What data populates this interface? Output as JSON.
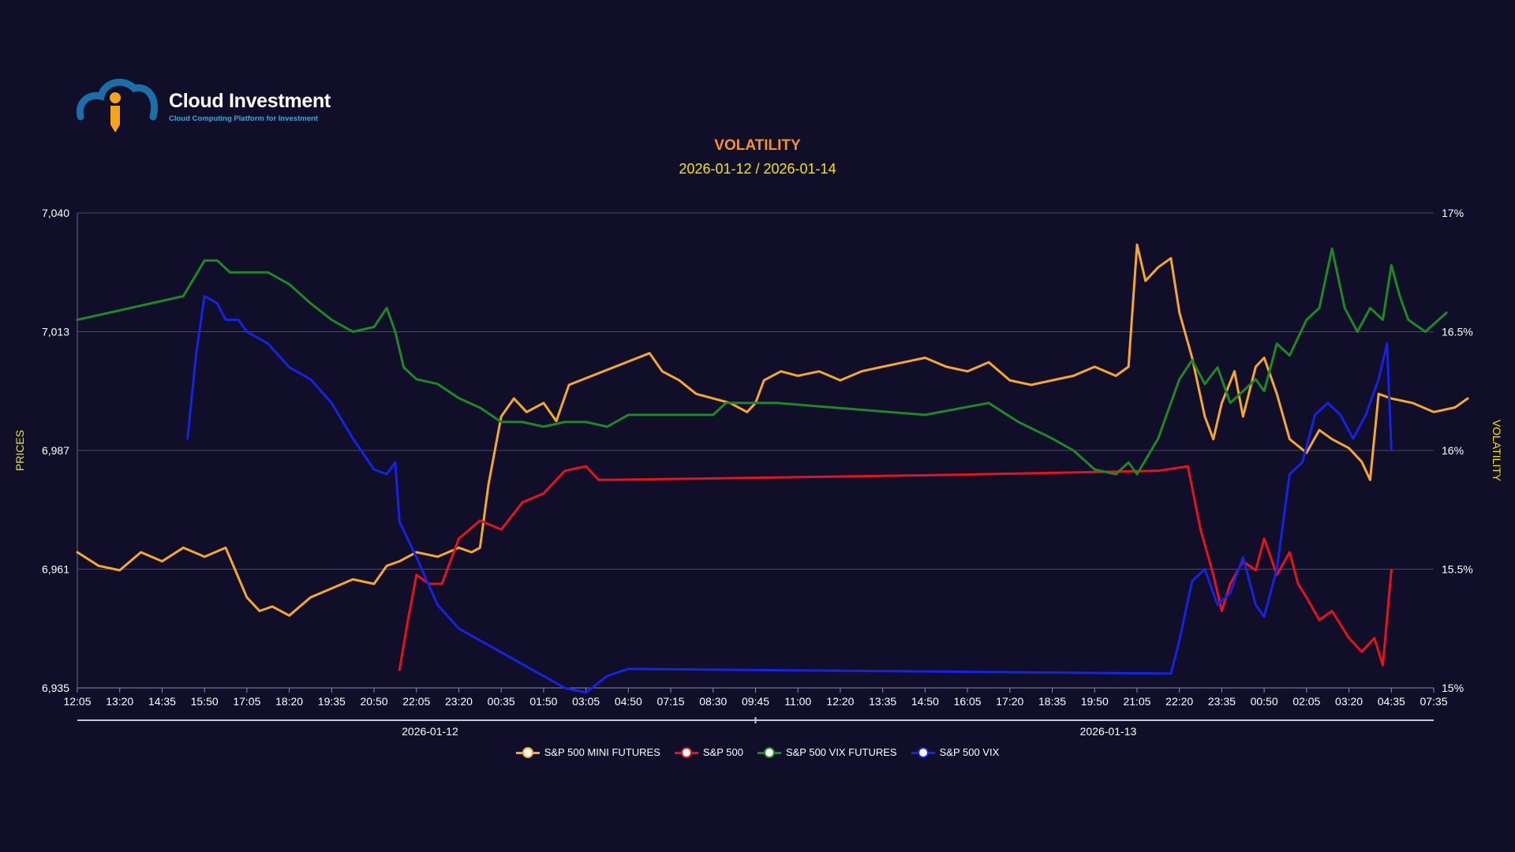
{
  "brand": {
    "name": "Cloud Investment",
    "tagline": "Cloud Computing Platform for Investment",
    "colors": {
      "cloud": "#1a6fa8",
      "figure": "#f7a41d",
      "tagline": "#3aa7d9"
    }
  },
  "chart_data": {
    "type": "line",
    "title": "VOLATILITY",
    "subtitle": "2026-01-12 / 2026-01-14",
    "ylabel_left": "PRICES",
    "ylabel_right": "VOLATILITY",
    "y_left_ticks": [
      "7,040",
      "7,013",
      "6,987",
      "6,961",
      "6,935"
    ],
    "y_right_ticks": [
      "17%",
      "16.5%",
      "16%",
      "15.5%",
      "15%"
    ],
    "ylim_left": [
      6935,
      7040
    ],
    "ylim_right": [
      15,
      17
    ],
    "x_ticks": [
      "12:05",
      "13:20",
      "14:35",
      "15:50",
      "17:05",
      "18:20",
      "19:35",
      "20:50",
      "22:05",
      "23:20",
      "00:35",
      "01:50",
      "03:05",
      "04:50",
      "07:15",
      "08:30",
      "09:45",
      "11:00",
      "12:20",
      "13:35",
      "14:50",
      "16:05",
      "17:20",
      "18:35",
      "19:50",
      "21:05",
      "22:20",
      "23:35",
      "00:50",
      "02:05",
      "03:20",
      "04:35",
      "07:35"
    ],
    "navigator_labels": [
      "2026-01-12",
      "2026-01-13"
    ],
    "grid": true,
    "legend_position": "bottom-center",
    "series": [
      {
        "name": "S&P 500 MINI FUTURES",
        "axis": "left",
        "color": "#f7a72a",
        "points": [
          [
            0,
            6965
          ],
          [
            0.5,
            6962
          ],
          [
            1,
            6961
          ],
          [
            1.5,
            6965
          ],
          [
            2,
            6963
          ],
          [
            2.5,
            6966
          ],
          [
            3,
            6964
          ],
          [
            3.5,
            6966
          ],
          [
            4,
            6955
          ],
          [
            4.3,
            6952
          ],
          [
            4.6,
            6953
          ],
          [
            5,
            6951
          ],
          [
            5.5,
            6955
          ],
          [
            6,
            6957
          ],
          [
            6.5,
            6959
          ],
          [
            7,
            6958
          ],
          [
            7.3,
            6962
          ],
          [
            7.6,
            6963
          ],
          [
            8,
            6965
          ],
          [
            8.5,
            6964
          ],
          [
            9,
            6966
          ],
          [
            9.3,
            6965
          ],
          [
            9.5,
            6966
          ],
          [
            9.7,
            6980
          ],
          [
            10,
            6995
          ],
          [
            10.3,
            6999
          ],
          [
            10.6,
            6996
          ],
          [
            11,
            6998
          ],
          [
            11.3,
            6994
          ],
          [
            11.6,
            7002
          ],
          [
            13.5,
            7009
          ],
          [
            13.8,
            7005
          ],
          [
            14.2,
            7003
          ],
          [
            14.6,
            7000
          ],
          [
            15,
            6999
          ],
          [
            15.4,
            6998
          ],
          [
            15.8,
            6996
          ],
          [
            16,
            6998
          ],
          [
            16.2,
            7003
          ],
          [
            16.6,
            7005
          ],
          [
            17,
            7004
          ],
          [
            17.5,
            7005
          ],
          [
            18,
            7003
          ],
          [
            18.5,
            7005
          ],
          [
            19,
            7006
          ],
          [
            19.5,
            7007
          ],
          [
            20,
            7008
          ],
          [
            20.5,
            7006
          ],
          [
            21,
            7005
          ],
          [
            21.5,
            7007
          ],
          [
            22,
            7003
          ],
          [
            22.5,
            7002
          ],
          [
            23,
            7003
          ],
          [
            23.5,
            7004
          ],
          [
            24,
            7006
          ],
          [
            24.5,
            7004
          ],
          [
            24.8,
            7006
          ],
          [
            25,
            7033
          ],
          [
            25.2,
            7025
          ],
          [
            25.5,
            7028
          ],
          [
            25.8,
            7030
          ],
          [
            26,
            7018
          ],
          [
            26.3,
            7008
          ],
          [
            26.6,
            6995
          ],
          [
            26.8,
            6990
          ],
          [
            27,
            6998
          ],
          [
            27.3,
            7005
          ],
          [
            27.5,
            6995
          ],
          [
            27.8,
            7006
          ],
          [
            28,
            7008
          ],
          [
            28.3,
            7000
          ],
          [
            28.6,
            6990
          ],
          [
            29,
            6987
          ],
          [
            29.3,
            6992
          ],
          [
            29.6,
            6990
          ],
          [
            30,
            6988
          ],
          [
            30.3,
            6985
          ],
          [
            30.5,
            6981
          ],
          [
            30.7,
            7000
          ],
          [
            31,
            6999
          ],
          [
            31.5,
            6998
          ],
          [
            32,
            6996
          ],
          [
            32.5,
            6997
          ],
          [
            32.8,
            6999
          ]
        ]
      },
      {
        "name": "S&P 500",
        "axis": "left",
        "color": "#e8121a",
        "points": [
          [
            7.6,
            6939
          ],
          [
            7.8,
            6950
          ],
          [
            8,
            6960
          ],
          [
            8.3,
            6958
          ],
          [
            8.6,
            6958
          ],
          [
            9,
            6968
          ],
          [
            9.5,
            6972
          ],
          [
            10,
            6970
          ],
          [
            10.5,
            6976
          ],
          [
            11,
            6978
          ],
          [
            11.5,
            6983
          ],
          [
            12,
            6984
          ],
          [
            12.3,
            6981
          ],
          [
            12.6,
            6981
          ],
          [
            20,
            6982
          ],
          [
            25.5,
            6983
          ],
          [
            26.2,
            6984
          ],
          [
            26.5,
            6970
          ],
          [
            26.8,
            6960
          ],
          [
            27,
            6952
          ],
          [
            27.2,
            6958
          ],
          [
            27.5,
            6963
          ],
          [
            27.8,
            6961
          ],
          [
            28,
            6968
          ],
          [
            28.3,
            6960
          ],
          [
            28.6,
            6965
          ],
          [
            28.8,
            6958
          ],
          [
            29,
            6955
          ],
          [
            29.3,
            6950
          ],
          [
            29.6,
            6952
          ],
          [
            30,
            6946
          ],
          [
            30.3,
            6943
          ],
          [
            30.6,
            6946
          ],
          [
            30.8,
            6940
          ],
          [
            31,
            6961
          ]
        ]
      },
      {
        "name": "S&P 500 VIX FUTURES",
        "axis": "right",
        "color": "#1c8a22",
        "points": [
          [
            0,
            16.55
          ],
          [
            2.5,
            16.65
          ],
          [
            3,
            16.8
          ],
          [
            3.3,
            16.8
          ],
          [
            3.6,
            16.75
          ],
          [
            4,
            16.75
          ],
          [
            4.5,
            16.75
          ],
          [
            5,
            16.7
          ],
          [
            5.5,
            16.62
          ],
          [
            6,
            16.55
          ],
          [
            6.5,
            16.5
          ],
          [
            7,
            16.52
          ],
          [
            7.3,
            16.6
          ],
          [
            7.5,
            16.5
          ],
          [
            7.7,
            16.35
          ],
          [
            8,
            16.3
          ],
          [
            8.5,
            16.28
          ],
          [
            9,
            16.22
          ],
          [
            9.5,
            16.18
          ],
          [
            10,
            16.12
          ],
          [
            10.5,
            16.12
          ],
          [
            11,
            16.1
          ],
          [
            11.5,
            16.12
          ],
          [
            12,
            16.12
          ],
          [
            12.5,
            16.1
          ],
          [
            13,
            16.15
          ],
          [
            13.5,
            16.15
          ],
          [
            15,
            16.15
          ],
          [
            15.3,
            16.2
          ],
          [
            16.5,
            16.2
          ],
          [
            20,
            16.15
          ],
          [
            21.5,
            16.2
          ],
          [
            22.2,
            16.12
          ],
          [
            23,
            16.05
          ],
          [
            23.5,
            16.0
          ],
          [
            24,
            15.92
          ],
          [
            24.5,
            15.9
          ],
          [
            24.8,
            15.95
          ],
          [
            25,
            15.9
          ],
          [
            25.5,
            16.05
          ],
          [
            25.8,
            16.2
          ],
          [
            26,
            16.3
          ],
          [
            26.3,
            16.38
          ],
          [
            26.6,
            16.28
          ],
          [
            26.9,
            16.35
          ],
          [
            27.2,
            16.2
          ],
          [
            27.5,
            16.25
          ],
          [
            27.8,
            16.3
          ],
          [
            28,
            16.25
          ],
          [
            28.3,
            16.45
          ],
          [
            28.6,
            16.4
          ],
          [
            29,
            16.55
          ],
          [
            29.3,
            16.6
          ],
          [
            29.6,
            16.85
          ],
          [
            29.9,
            16.6
          ],
          [
            30.2,
            16.5
          ],
          [
            30.5,
            16.6
          ],
          [
            30.8,
            16.55
          ],
          [
            31,
            16.78
          ],
          [
            31.2,
            16.65
          ],
          [
            31.4,
            16.55
          ],
          [
            31.8,
            16.5
          ],
          [
            32.3,
            16.58
          ]
        ]
      },
      {
        "name": "S&P 500 VIX",
        "axis": "right",
        "color": "#1523e8",
        "points": [
          [
            2.6,
            16.05
          ],
          [
            2.8,
            16.4
          ],
          [
            3,
            16.65
          ],
          [
            3.3,
            16.62
          ],
          [
            3.5,
            16.55
          ],
          [
            3.8,
            16.55
          ],
          [
            4,
            16.5
          ],
          [
            4.5,
            16.45
          ],
          [
            5,
            16.35
          ],
          [
            5.5,
            16.3
          ],
          [
            6,
            16.2
          ],
          [
            6.5,
            16.05
          ],
          [
            7,
            15.92
          ],
          [
            7.3,
            15.9
          ],
          [
            7.5,
            15.95
          ],
          [
            7.6,
            15.7
          ],
          [
            8,
            15.55
          ],
          [
            8.5,
            15.35
          ],
          [
            9,
            15.25
          ],
          [
            9.5,
            15.2
          ],
          [
            10,
            15.15
          ],
          [
            10.5,
            15.1
          ],
          [
            11,
            15.05
          ],
          [
            11.5,
            15.0
          ],
          [
            12,
            14.98
          ],
          [
            12.5,
            15.05
          ],
          [
            13,
            15.08
          ],
          [
            25.8,
            15.06
          ],
          [
            26,
            15.2
          ],
          [
            26.3,
            15.45
          ],
          [
            26.6,
            15.5
          ],
          [
            26.9,
            15.35
          ],
          [
            27.2,
            15.4
          ],
          [
            27.5,
            15.55
          ],
          [
            27.8,
            15.35
          ],
          [
            28,
            15.3
          ],
          [
            28.3,
            15.5
          ],
          [
            28.6,
            15.9
          ],
          [
            28.9,
            15.95
          ],
          [
            29.2,
            16.15
          ],
          [
            29.5,
            16.2
          ],
          [
            29.8,
            16.15
          ],
          [
            30.1,
            16.05
          ],
          [
            30.4,
            16.15
          ],
          [
            30.7,
            16.3
          ],
          [
            30.9,
            16.45
          ],
          [
            31,
            16.0
          ]
        ]
      }
    ]
  }
}
